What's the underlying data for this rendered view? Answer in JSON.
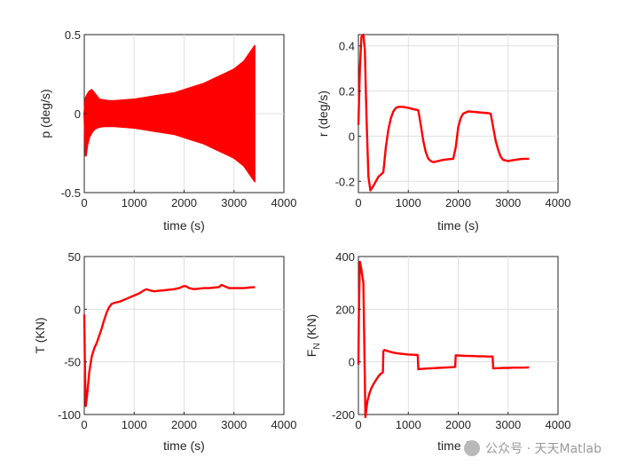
{
  "chart_data": [
    {
      "type": "line",
      "xlabel": "time (s)",
      "ylabel": "p (deg/s)",
      "xlim": [
        0,
        4000
      ],
      "ylim": [
        -0.5,
        0.5
      ],
      "xticks": [
        "0",
        "1000",
        "2000",
        "3000",
        "4000"
      ],
      "yticks": [
        "-0.5",
        "0",
        "0.5"
      ],
      "ytick_values": [
        -0.5,
        0,
        0.5
      ],
      "grid": true,
      "color": "#ff0000",
      "series": [
        {
          "style": "oscillation-envelope",
          "x": [
            0,
            30,
            60,
            100,
            150,
            200,
            250,
            300,
            400,
            500,
            600,
            800,
            1000,
            1200,
            1400,
            1600,
            1800,
            2000,
            2200,
            2400,
            2600,
            2800,
            3000,
            3200,
            3420
          ],
          "y_upper": [
            0.0,
            0.1,
            0.12,
            0.14,
            0.15,
            0.13,
            0.11,
            0.09,
            0.085,
            0.08,
            0.08,
            0.085,
            0.09,
            0.1,
            0.11,
            0.12,
            0.13,
            0.15,
            0.17,
            0.19,
            0.22,
            0.25,
            0.28,
            0.33,
            0.43
          ],
          "y_lower": [
            0.0,
            -0.27,
            -0.2,
            -0.15,
            -0.12,
            -0.1,
            -0.09,
            -0.085,
            -0.08,
            -0.08,
            -0.08,
            -0.085,
            -0.09,
            -0.1,
            -0.11,
            -0.12,
            -0.13,
            -0.15,
            -0.17,
            -0.19,
            -0.22,
            -0.25,
            -0.28,
            -0.33,
            -0.43
          ]
        }
      ]
    },
    {
      "type": "line",
      "xlabel": "time (s)",
      "ylabel": "r (deg/s)",
      "xlim": [
        0,
        4000
      ],
      "ylim": [
        -0.25,
        0.45
      ],
      "xticks": [
        "0",
        "1000",
        "2000",
        "3000",
        "4000"
      ],
      "yticks": [
        "-0.2",
        "0",
        "0.2",
        "0.4"
      ],
      "ytick_values": [
        -0.2,
        0,
        0.2,
        0.4
      ],
      "grid": true,
      "color": "#ff0000",
      "series": [
        {
          "x": [
            0,
            30,
            60,
            100,
            130,
            160,
            200,
            240,
            300,
            350,
            400,
            450,
            500,
            550,
            600,
            650,
            700,
            750,
            800,
            900,
            1000,
            1100,
            1200,
            1250,
            1300,
            1350,
            1400,
            1450,
            1500,
            1600,
            1700,
            1800,
            1900,
            1950,
            2000,
            2050,
            2100,
            2200,
            2300,
            2400,
            2500,
            2600,
            2650,
            2700,
            2750,
            2800,
            2850,
            2900,
            3000,
            3100,
            3200,
            3300,
            3420
          ],
          "y": [
            0.05,
            0.3,
            0.44,
            0.45,
            0.38,
            0.1,
            -0.18,
            -0.24,
            -0.22,
            -0.2,
            -0.18,
            -0.17,
            -0.16,
            -0.05,
            0.03,
            0.08,
            0.11,
            0.125,
            0.13,
            0.13,
            0.125,
            0.12,
            0.115,
            0.05,
            -0.02,
            -0.07,
            -0.1,
            -0.11,
            -0.115,
            -0.11,
            -0.105,
            -0.102,
            -0.1,
            -0.05,
            0.04,
            0.08,
            0.1,
            0.11,
            0.108,
            0.106,
            0.104,
            0.102,
            0.1,
            0.04,
            -0.02,
            -0.06,
            -0.09,
            -0.105,
            -0.11,
            -0.106,
            -0.103,
            -0.1,
            -0.1
          ]
        }
      ]
    },
    {
      "type": "line",
      "xlabel": "time (s)",
      "ylabel": "T (KN)",
      "xlim": [
        0,
        4000
      ],
      "ylim": [
        -100,
        50
      ],
      "xticks": [
        "0",
        "1000",
        "2000",
        "3000",
        "4000"
      ],
      "yticks": [
        "-100",
        "-50",
        "0",
        "50"
      ],
      "ytick_values": [
        -100,
        -50,
        0,
        50
      ],
      "grid": true,
      "color": "#ff0000",
      "series": [
        {
          "x": [
            0,
            15,
            30,
            60,
            100,
            150,
            200,
            250,
            300,
            350,
            400,
            450,
            500,
            550,
            600,
            700,
            800,
            900,
            1000,
            1100,
            1200,
            1250,
            1300,
            1400,
            1500,
            1600,
            1700,
            1800,
            1900,
            2000,
            2050,
            2100,
            2200,
            2300,
            2400,
            2500,
            2600,
            2700,
            2750,
            2800,
            2900,
            3000,
            3100,
            3200,
            3300,
            3420
          ],
          "y": [
            -5,
            -60,
            -92,
            -80,
            -60,
            -45,
            -37,
            -32,
            -25,
            -18,
            -10,
            -3,
            2,
            5,
            6,
            7,
            9,
            11,
            13,
            15,
            18,
            19,
            18,
            17,
            17.5,
            18,
            18.5,
            19,
            20,
            22,
            21.5,
            20,
            19,
            19.5,
            20,
            20,
            20.5,
            21,
            23,
            22,
            20,
            20,
            20,
            20,
            20.5,
            21
          ]
        }
      ]
    },
    {
      "type": "line",
      "xlabel": "time (s)",
      "ylabel_main": "F",
      "ylabel_sub": "N",
      "ylabel_unit": " (KN)",
      "xlim": [
        0,
        4000
      ],
      "ylim": [
        -200,
        400
      ],
      "xticks": [
        "0",
        "1000",
        "2000",
        "3000",
        "4000"
      ],
      "yticks": [
        "-200",
        "0",
        "200",
        "400"
      ],
      "ytick_values": [
        -200,
        0,
        200,
        400
      ],
      "grid": true,
      "color": "#ff0000",
      "series": [
        {
          "x": [
            0,
            10,
            30,
            60,
            100,
            140,
            180,
            220,
            260,
            300,
            350,
            400,
            450,
            490,
            500,
            520,
            600,
            700,
            800,
            900,
            1000,
            1100,
            1190,
            1200,
            1250,
            1300,
            1400,
            1500,
            1600,
            1700,
            1800,
            1900,
            1940,
            1950,
            2000,
            2100,
            2200,
            2300,
            2400,
            2500,
            2600,
            2690,
            2700,
            2750,
            2800,
            2900,
            3000,
            3100,
            3200,
            3300,
            3420
          ],
          "y": [
            -10,
            200,
            380,
            350,
            300,
            -210,
            -150,
            -120,
            -100,
            -85,
            -70,
            -55,
            -45,
            -40,
            40,
            45,
            40,
            35,
            32,
            30,
            28,
            27,
            26,
            -28,
            -27,
            -26,
            -25,
            -24,
            -23,
            -22,
            -21,
            -20,
            -19,
            25,
            24,
            23,
            22,
            22,
            21,
            21,
            20,
            20,
            -25,
            -24,
            -24,
            -23,
            -23,
            -22,
            -22,
            -22,
            -21
          ]
        }
      ]
    }
  ],
  "watermark": {
    "icon": "wechat-icon",
    "text": "公众号 · 天天Matlab"
  }
}
